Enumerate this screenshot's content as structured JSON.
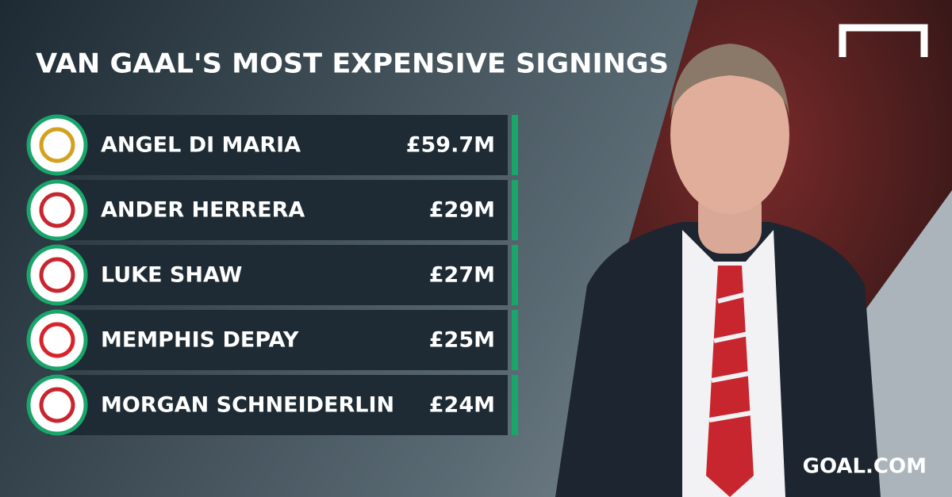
{
  "title": "VAN GAAL'S MOST EXPENSIVE SIGNINGS",
  "rows": [
    {
      "name": "ANGEL DI MARIA",
      "fee": "£59.7M"
    },
    {
      "name": "ANDER HERRERA",
      "fee": "£29M"
    },
    {
      "name": "LUKE SHAW",
      "fee": "£27M"
    },
    {
      "name": "MEMPHIS DEPAY",
      "fee": "£25M"
    },
    {
      "name": "MORGAN SCHNEIDERLIN",
      "fee": "£24M"
    }
  ],
  "brand": "GOAL.COM"
}
